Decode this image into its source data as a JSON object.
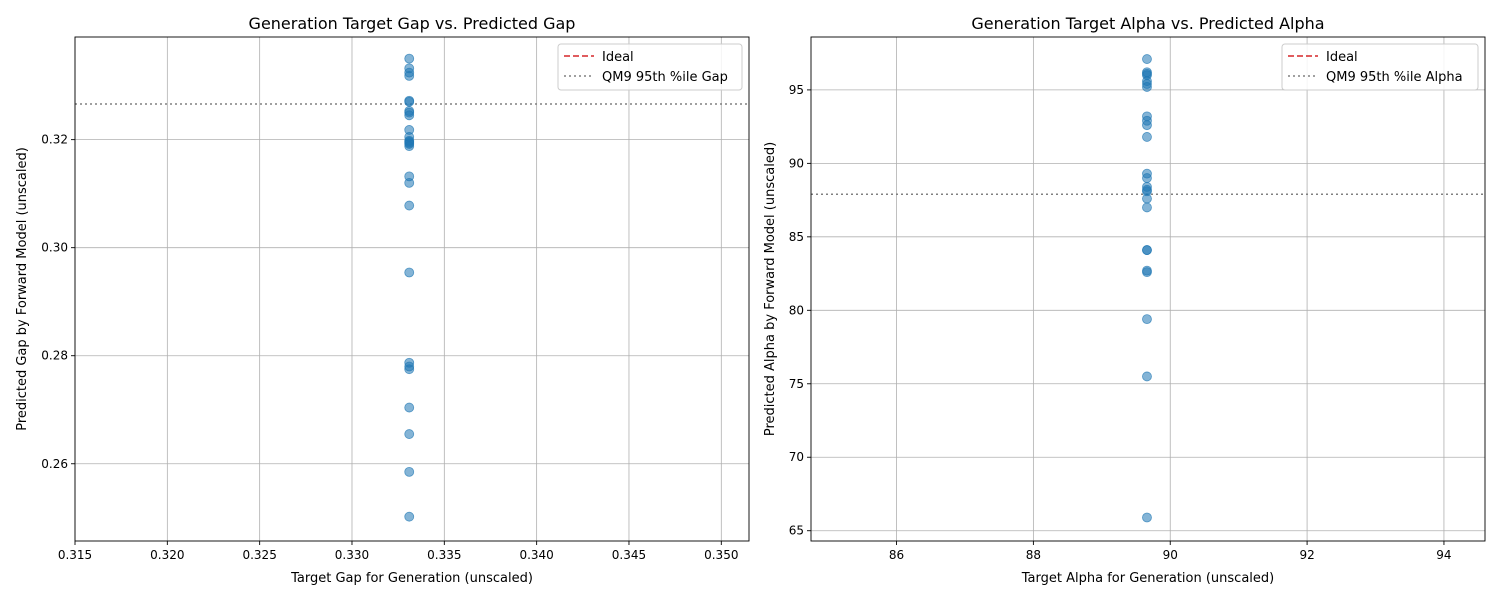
{
  "chart_data": [
    {
      "type": "scatter",
      "title": "Generation Target Gap vs. Predicted Gap",
      "xlabel": "Target Gap for Generation (unscaled)",
      "ylabel": "Predicted Gap by Forward Model (unscaled)",
      "xlim": [
        0.315,
        0.3515
      ],
      "ylim": [
        0.2457,
        0.339
      ],
      "xticks": [
        0.315,
        0.32,
        0.325,
        0.33,
        0.335,
        0.34,
        0.345,
        0.35
      ],
      "xtick_labels": [
        "0.315",
        "0.320",
        "0.325",
        "0.330",
        "0.335",
        "0.340",
        "0.345",
        "0.350"
      ],
      "yticks": [
        0.26,
        0.28,
        0.3,
        0.32
      ],
      "ytick_labels": [
        "0.26",
        "0.28",
        "0.30",
        "0.32"
      ],
      "grid": true,
      "legend_position": "top-right",
      "legend": [
        "Ideal",
        "QM9 95th %ile Gap"
      ],
      "reference_lines": [
        {
          "name": "QM9 95th %ile Gap",
          "orientation": "horizontal",
          "value": 0.3266,
          "color": "#808080",
          "style": "dotted"
        }
      ],
      "ideal_line": {
        "name": "Ideal",
        "color": "#d62728",
        "style": "dashed"
      },
      "point_color": "#1f77b4",
      "x": [
        0.3331,
        0.3331,
        0.3331,
        0.3331,
        0.3331,
        0.3331,
        0.3331,
        0.3331,
        0.3331,
        0.3331,
        0.3331,
        0.3331,
        0.3331,
        0.3331,
        0.3331,
        0.3331,
        0.3331,
        0.3331,
        0.3331,
        0.3331,
        0.3331,
        0.3331,
        0.3331,
        0.3331,
        0.3331,
        0.3331,
        0.3331
      ],
      "y": [
        0.335,
        0.3332,
        0.3324,
        0.3318,
        0.3272,
        0.327,
        0.3253,
        0.325,
        0.3245,
        0.3218,
        0.3205,
        0.3198,
        0.3194,
        0.3188,
        0.3132,
        0.312,
        0.3078,
        0.2954,
        0.2787,
        0.278,
        0.2775,
        0.2704,
        0.2655,
        0.2585,
        0.2502,
        0.3196,
        0.3192
      ]
    },
    {
      "type": "scatter",
      "title": "Generation Target Alpha vs. Predicted Alpha",
      "xlabel": "Target Alpha for Generation (unscaled)",
      "ylabel": "Predicted Alpha by Forward Model (unscaled)",
      "xlim": [
        84.75,
        94.6
      ],
      "ylim": [
        64.3,
        98.6
      ],
      "xticks": [
        86,
        88,
        90,
        92,
        94
      ],
      "xtick_labels": [
        "86",
        "88",
        "90",
        "92",
        "94"
      ],
      "yticks": [
        65,
        70,
        75,
        80,
        85,
        90,
        95
      ],
      "ytick_labels": [
        "65",
        "70",
        "75",
        "80",
        "85",
        "90",
        "95"
      ],
      "grid": true,
      "legend_position": "top-right",
      "legend": [
        "Ideal",
        "QM9 95th %ile Alpha"
      ],
      "reference_lines": [
        {
          "name": "QM9 95th %ile Alpha",
          "orientation": "horizontal",
          "value": 87.9,
          "color": "#808080",
          "style": "dotted"
        }
      ],
      "ideal_line": {
        "name": "Ideal",
        "color": "#d62728",
        "style": "dashed"
      },
      "point_color": "#1f77b4",
      "x": [
        89.66,
        89.66,
        89.66,
        89.66,
        89.66,
        89.66,
        89.66,
        89.66,
        89.66,
        89.66,
        89.66,
        89.66,
        89.66,
        89.66,
        89.66,
        89.66,
        89.66,
        89.66,
        89.66,
        89.66,
        89.66,
        89.66,
        89.66,
        89.66,
        89.66
      ],
      "y": [
        97.1,
        96.2,
        96.0,
        95.6,
        95.2,
        93.2,
        92.9,
        92.6,
        91.8,
        89.3,
        89.0,
        88.4,
        88.1,
        87.6,
        87.0,
        84.1,
        84.1,
        82.7,
        82.6,
        79.4,
        75.5,
        65.9,
        96.1,
        95.4,
        88.2
      ]
    }
  ]
}
